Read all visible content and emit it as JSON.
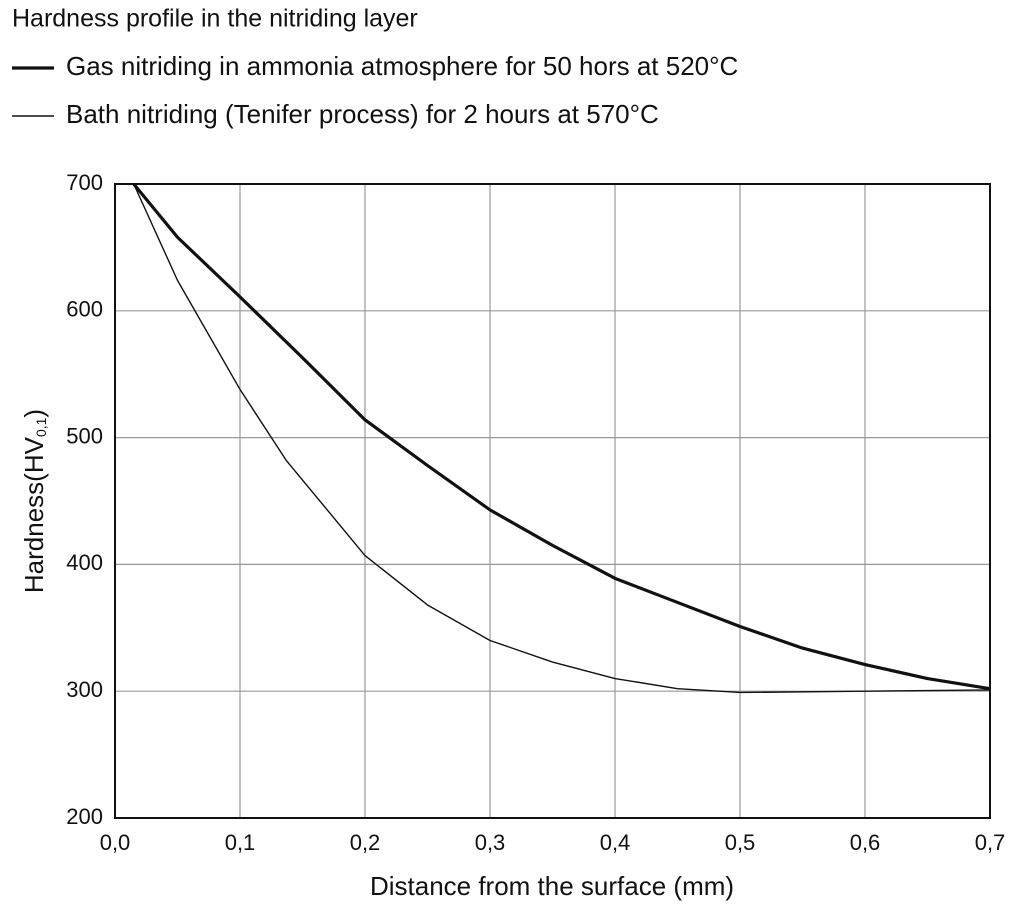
{
  "chart_data": {
    "type": "line",
    "title": "Hardness profile in the nitriding layer",
    "xlabel": "Distance from the surface (mm)",
    "ylabel": {
      "text": "Hardness(HV",
      "subscript": "0,1",
      "suffix": ")"
    },
    "xlim": [
      0,
      0.7
    ],
    "ylim": [
      200,
      700
    ],
    "xticks": [
      {
        "value": 0,
        "label": "0,0"
      },
      {
        "value": 0.1,
        "label": "0,1"
      },
      {
        "value": 0.2,
        "label": "0,2"
      },
      {
        "value": 0.3,
        "label": "0,3"
      },
      {
        "value": 0.4,
        "label": "0,4"
      },
      {
        "value": 0.5,
        "label": "0,5"
      },
      {
        "value": 0.6,
        "label": "0,6"
      },
      {
        "value": 0.7,
        "label": "0,7"
      }
    ],
    "yticks": [
      200,
      300,
      400,
      500,
      600,
      700
    ],
    "grid": true,
    "series": [
      {
        "name": "Gas nitriding in ammonia atmosphere for 50 hors at 520°C",
        "color": "#111111",
        "line_width": 3.2,
        "x": [
          0.015,
          0.05,
          0.1,
          0.15,
          0.2,
          0.25,
          0.3,
          0.35,
          0.4,
          0.45,
          0.5,
          0.55,
          0.6,
          0.65,
          0.7
        ],
        "values": [
          700,
          658,
          611,
          563,
          514,
          478,
          443,
          415,
          389,
          370,
          351,
          334,
          321,
          310,
          302
        ]
      },
      {
        "name": "Bath nitriding (Tenifer process) for 2 hours at 570°C",
        "color": "#111111",
        "line_width": 1.4,
        "x": [
          0.015,
          0.05,
          0.1,
          0.137,
          0.2,
          0.25,
          0.3,
          0.35,
          0.4,
          0.45,
          0.5,
          0.6,
          0.7
        ],
        "values": [
          700,
          624,
          538,
          482,
          407,
          368,
          340,
          323,
          310,
          302,
          299,
          300,
          301
        ]
      }
    ]
  }
}
